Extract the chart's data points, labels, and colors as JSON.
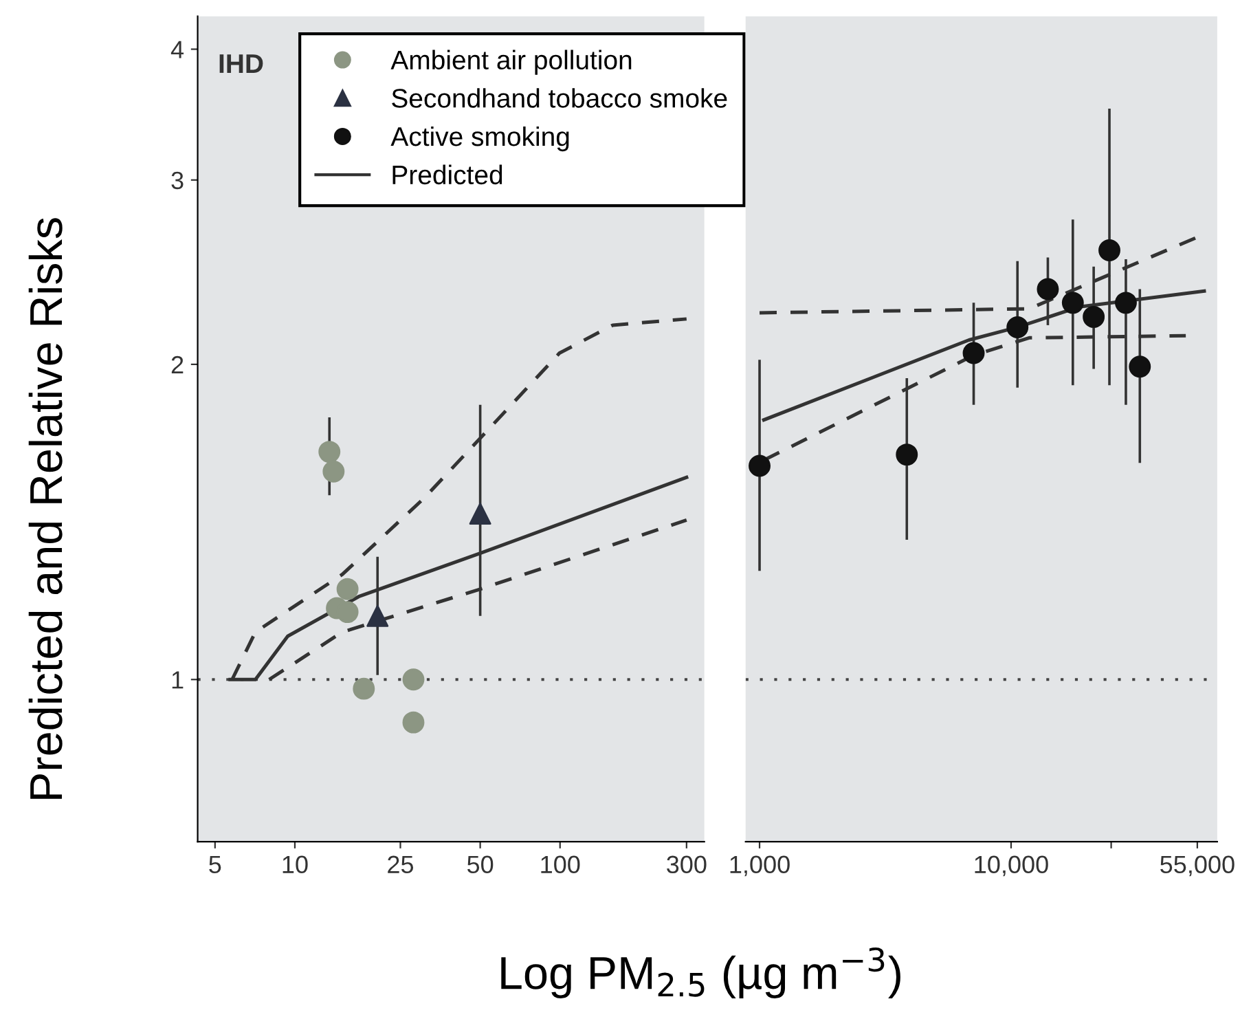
{
  "chart_data": [
    {
      "type": "scatter",
      "ylabel": "Predicted and Relative Risks",
      "xlabel": "Log PM$_{2.5}$ (µg m$^{−3}$)",
      "annotations": [
        "IHD"
      ],
      "log": "xy",
      "grid": false,
      "legend": "top",
      "xlim": [
        4.3,
        350
      ],
      "xticks": [
        5,
        10,
        25,
        50,
        100,
        300
      ],
      "ylim": [
        0.7,
        4.3
      ],
      "yticks": [
        1,
        2,
        3,
        4
      ],
      "ref_lines": [
        {
          "axis": "y",
          "value": 1,
          "line_style": "dotted",
          "color": "#444444"
        }
      ],
      "series": [
        {
          "name": "Ambient air pollution",
          "marker": "circle",
          "color": "#8c9683",
          "x": [
            13.5,
            14,
            14.4,
            15.8,
            15.8,
            18.2,
            28,
            28
          ],
          "values": [
            1.65,
            1.58,
            1.17,
            1.22,
            1.16,
            0.98,
            1.0,
            0.91
          ],
          "errors": [
            [
              1.5,
              1.78
            ],
            null,
            null,
            null,
            null,
            null,
            null,
            null
          ]
        },
        {
          "name": "Secondhand tobacco smoke",
          "marker": "triangle",
          "color": "#2b3142",
          "x": [
            20.5,
            50
          ],
          "values": [
            1.15,
            1.44
          ],
          "errors": [
            [
              1.01,
              1.31
            ],
            [
              1.15,
              1.83
            ]
          ]
        },
        {
          "name": "Predicted",
          "type": "line",
          "line_style": "solid",
          "color": "#333333",
          "x": [
            5.7,
            7.1,
            9.4,
            17.4,
            50,
            300
          ],
          "values": [
            1.0,
            1.0,
            1.1,
            1.2,
            1.32,
            1.56
          ]
        },
        {
          "type": "line",
          "line_style": "dashed",
          "color": "#333333",
          "x": [
            5.8,
            7.1,
            15.1,
            30.7,
            50,
            99.5,
            158,
            300
          ],
          "values": [
            1.0,
            1.11,
            1.26,
            1.49,
            1.7,
            2.05,
            2.18,
            2.21
          ]
        },
        {
          "type": "line",
          "line_style": "dashed",
          "color": "#333333",
          "x": [
            8.0,
            15.1,
            50,
            300
          ],
          "values": [
            1.0,
            1.11,
            1.22,
            1.42
          ]
        }
      ]
    },
    {
      "type": "scatter",
      "log": "xy",
      "grid": false,
      "tick_labels": "x",
      "xlim": [
        880,
        66000
      ],
      "xticks": [
        {
          "value": 1000,
          "label": "1,000"
        },
        {
          "value": 10000,
          "label": "10,000"
        },
        {
          "value": 25000,
          "label": null
        },
        {
          "value": 55000,
          "label": "55,000"
        }
      ],
      "ylim": [
        0.7,
        4.3
      ],
      "ref_lines": [
        {
          "axis": "y",
          "value": 1,
          "line_style": "dotted",
          "color": "#444444"
        }
      ],
      "series": [
        {
          "name": "Active smoking",
          "marker": "circle",
          "color": "#111111",
          "x": [
            1000,
            3850,
            7100,
            10600,
            14000,
            17600,
            21300,
            24600,
            28600,
            32500
          ],
          "values": [
            1.6,
            1.64,
            2.05,
            2.17,
            2.36,
            2.29,
            2.22,
            2.57,
            2.29,
            1.99
          ],
          "errors": [
            [
              1.27,
              2.02
            ],
            [
              1.36,
              1.94
            ],
            [
              1.83,
              2.29
            ],
            [
              1.9,
              2.51
            ],
            [
              2.18,
              2.53
            ],
            [
              1.91,
              2.75
            ],
            [
              1.98,
              2.48
            ],
            [
              1.91,
              3.51
            ],
            [
              1.83,
              2.52
            ],
            [
              1.61,
              2.36
            ]
          ]
        },
        {
          "type": "line",
          "line_style": "solid",
          "color": "#333333",
          "x": [
            1040,
            6800,
            10600,
            18700,
            58600
          ],
          "values": [
            1.77,
            2.11,
            2.17,
            2.27,
            2.35
          ]
        },
        {
          "type": "line",
          "line_style": "dashed",
          "color": "#333333",
          "x": [
            1000,
            11800,
            54000
          ],
          "values": [
            2.24,
            2.26,
            2.64
          ]
        },
        {
          "type": "line",
          "line_style": "dashed",
          "color": "#333333",
          "x": [
            1040,
            7100,
            11800,
            49500
          ],
          "values": [
            1.62,
            2.04,
            2.12,
            2.13
          ]
        }
      ]
    }
  ]
}
